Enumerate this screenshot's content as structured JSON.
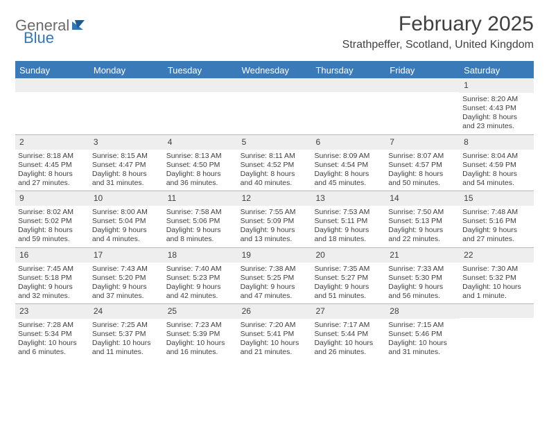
{
  "brand": {
    "text1": "General",
    "text2": "Blue"
  },
  "title": "February 2025",
  "location": "Strathpeffer, Scotland, United Kingdom",
  "colors": {
    "header_bg": "#3a7ab8",
    "header_text": "#ffffff",
    "daynum_bg": "#eeeeee",
    "rule": "#b8b8b8",
    "text": "#3d3d3d",
    "logo_gray": "#6a6a6a",
    "logo_blue": "#2f77b9"
  },
  "day_headers": [
    "Sunday",
    "Monday",
    "Tuesday",
    "Wednesday",
    "Thursday",
    "Friday",
    "Saturday"
  ],
  "weeks": [
    [
      {
        "n": "",
        "sr": "",
        "ss": "",
        "dl": ""
      },
      {
        "n": "",
        "sr": "",
        "ss": "",
        "dl": ""
      },
      {
        "n": "",
        "sr": "",
        "ss": "",
        "dl": ""
      },
      {
        "n": "",
        "sr": "",
        "ss": "",
        "dl": ""
      },
      {
        "n": "",
        "sr": "",
        "ss": "",
        "dl": ""
      },
      {
        "n": "",
        "sr": "",
        "ss": "",
        "dl": ""
      },
      {
        "n": "1",
        "sr": "Sunrise: 8:20 AM",
        "ss": "Sunset: 4:43 PM",
        "dl": "Daylight: 8 hours and 23 minutes."
      }
    ],
    [
      {
        "n": "2",
        "sr": "Sunrise: 8:18 AM",
        "ss": "Sunset: 4:45 PM",
        "dl": "Daylight: 8 hours and 27 minutes."
      },
      {
        "n": "3",
        "sr": "Sunrise: 8:15 AM",
        "ss": "Sunset: 4:47 PM",
        "dl": "Daylight: 8 hours and 31 minutes."
      },
      {
        "n": "4",
        "sr": "Sunrise: 8:13 AM",
        "ss": "Sunset: 4:50 PM",
        "dl": "Daylight: 8 hours and 36 minutes."
      },
      {
        "n": "5",
        "sr": "Sunrise: 8:11 AM",
        "ss": "Sunset: 4:52 PM",
        "dl": "Daylight: 8 hours and 40 minutes."
      },
      {
        "n": "6",
        "sr": "Sunrise: 8:09 AM",
        "ss": "Sunset: 4:54 PM",
        "dl": "Daylight: 8 hours and 45 minutes."
      },
      {
        "n": "7",
        "sr": "Sunrise: 8:07 AM",
        "ss": "Sunset: 4:57 PM",
        "dl": "Daylight: 8 hours and 50 minutes."
      },
      {
        "n": "8",
        "sr": "Sunrise: 8:04 AM",
        "ss": "Sunset: 4:59 PM",
        "dl": "Daylight: 8 hours and 54 minutes."
      }
    ],
    [
      {
        "n": "9",
        "sr": "Sunrise: 8:02 AM",
        "ss": "Sunset: 5:02 PM",
        "dl": "Daylight: 8 hours and 59 minutes."
      },
      {
        "n": "10",
        "sr": "Sunrise: 8:00 AM",
        "ss": "Sunset: 5:04 PM",
        "dl": "Daylight: 9 hours and 4 minutes."
      },
      {
        "n": "11",
        "sr": "Sunrise: 7:58 AM",
        "ss": "Sunset: 5:06 PM",
        "dl": "Daylight: 9 hours and 8 minutes."
      },
      {
        "n": "12",
        "sr": "Sunrise: 7:55 AM",
        "ss": "Sunset: 5:09 PM",
        "dl": "Daylight: 9 hours and 13 minutes."
      },
      {
        "n": "13",
        "sr": "Sunrise: 7:53 AM",
        "ss": "Sunset: 5:11 PM",
        "dl": "Daylight: 9 hours and 18 minutes."
      },
      {
        "n": "14",
        "sr": "Sunrise: 7:50 AM",
        "ss": "Sunset: 5:13 PM",
        "dl": "Daylight: 9 hours and 22 minutes."
      },
      {
        "n": "15",
        "sr": "Sunrise: 7:48 AM",
        "ss": "Sunset: 5:16 PM",
        "dl": "Daylight: 9 hours and 27 minutes."
      }
    ],
    [
      {
        "n": "16",
        "sr": "Sunrise: 7:45 AM",
        "ss": "Sunset: 5:18 PM",
        "dl": "Daylight: 9 hours and 32 minutes."
      },
      {
        "n": "17",
        "sr": "Sunrise: 7:43 AM",
        "ss": "Sunset: 5:20 PM",
        "dl": "Daylight: 9 hours and 37 minutes."
      },
      {
        "n": "18",
        "sr": "Sunrise: 7:40 AM",
        "ss": "Sunset: 5:23 PM",
        "dl": "Daylight: 9 hours and 42 minutes."
      },
      {
        "n": "19",
        "sr": "Sunrise: 7:38 AM",
        "ss": "Sunset: 5:25 PM",
        "dl": "Daylight: 9 hours and 47 minutes."
      },
      {
        "n": "20",
        "sr": "Sunrise: 7:35 AM",
        "ss": "Sunset: 5:27 PM",
        "dl": "Daylight: 9 hours and 51 minutes."
      },
      {
        "n": "21",
        "sr": "Sunrise: 7:33 AM",
        "ss": "Sunset: 5:30 PM",
        "dl": "Daylight: 9 hours and 56 minutes."
      },
      {
        "n": "22",
        "sr": "Sunrise: 7:30 AM",
        "ss": "Sunset: 5:32 PM",
        "dl": "Daylight: 10 hours and 1 minute."
      }
    ],
    [
      {
        "n": "23",
        "sr": "Sunrise: 7:28 AM",
        "ss": "Sunset: 5:34 PM",
        "dl": "Daylight: 10 hours and 6 minutes."
      },
      {
        "n": "24",
        "sr": "Sunrise: 7:25 AM",
        "ss": "Sunset: 5:37 PM",
        "dl": "Daylight: 10 hours and 11 minutes."
      },
      {
        "n": "25",
        "sr": "Sunrise: 7:23 AM",
        "ss": "Sunset: 5:39 PM",
        "dl": "Daylight: 10 hours and 16 minutes."
      },
      {
        "n": "26",
        "sr": "Sunrise: 7:20 AM",
        "ss": "Sunset: 5:41 PM",
        "dl": "Daylight: 10 hours and 21 minutes."
      },
      {
        "n": "27",
        "sr": "Sunrise: 7:17 AM",
        "ss": "Sunset: 5:44 PM",
        "dl": "Daylight: 10 hours and 26 minutes."
      },
      {
        "n": "28",
        "sr": "Sunrise: 7:15 AM",
        "ss": "Sunset: 5:46 PM",
        "dl": "Daylight: 10 hours and 31 minutes."
      },
      {
        "n": "",
        "sr": "",
        "ss": "",
        "dl": ""
      }
    ]
  ]
}
